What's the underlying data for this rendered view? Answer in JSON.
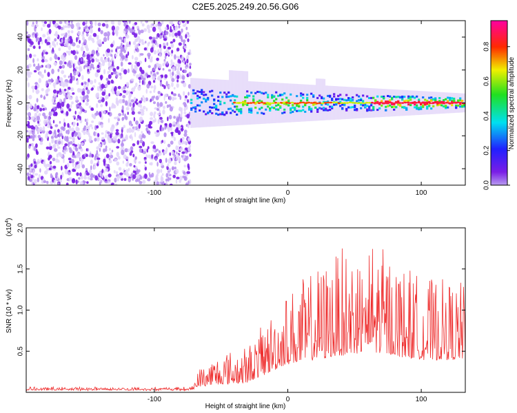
{
  "title": "C2E5.2025.249.20.56.G06",
  "colors": {
    "snr_line": "#ee2a2a",
    "background_speckle": "#8a2be2",
    "axis": "#000000"
  },
  "chart_data": [
    {
      "type": "heatmap",
      "name": "spectrogram",
      "xlabel": "Height of straight line (km)",
      "ylabel": "Frequency (Hz)",
      "xlim": [
        -196,
        133
      ],
      "ylim": [
        -50,
        50
      ],
      "x_ticks": [
        -100,
        0,
        100
      ],
      "y_ticks": [
        40,
        20,
        0,
        -20,
        -40
      ],
      "colorbar": {
        "label": "Normalized spectral amplitude",
        "range": [
          0,
          0.95
        ],
        "ticks": [
          "0.0",
          "0.2",
          "0.4",
          "0.6",
          "0.8"
        ],
        "colormap": "rainbow (purple-blue-cyan-green-yellow-red-magenta)"
      },
      "features": {
        "noise_region_x": [
          -196,
          -73
        ],
        "signal_onset_x": -73,
        "carrier_frequency_hz": 0,
        "signal_band_halfwidth_hz": [
          8,
          3
        ],
        "strong_segments_x": [
          [
            -40,
            20
          ],
          [
            62,
            120
          ]
        ],
        "peak_amplitude": 0.95
      }
    },
    {
      "type": "line",
      "name": "snr",
      "xlabel": "Height of straight line (km)",
      "ylabel": "SNR (10 * v/v)",
      "scale_label": "(x10",
      "scale_exponent": "4",
      "scale_suffix": ")",
      "xlim": [
        -196,
        133
      ],
      "ylim": [
        0,
        2.0
      ],
      "x_ticks": [
        -100,
        0,
        100
      ],
      "y_ticks": [
        "0.5",
        "1.0",
        "1.5",
        "2.0"
      ],
      "envelope": [
        {
          "x": -196,
          "baseline": 0.03,
          "amplitude": 0.03
        },
        {
          "x": -73,
          "baseline": 0.03,
          "amplitude": 0.03
        },
        {
          "x": -65,
          "baseline": 0.08,
          "amplitude": 0.25
        },
        {
          "x": -50,
          "baseline": 0.1,
          "amplitude": 0.4
        },
        {
          "x": -30,
          "baseline": 0.12,
          "amplitude": 0.45
        },
        {
          "x": -20,
          "baseline": 0.2,
          "amplitude": 0.6
        },
        {
          "x": 0,
          "baseline": 0.35,
          "amplitude": 0.9
        },
        {
          "x": 20,
          "baseline": 0.4,
          "amplitude": 1.1
        },
        {
          "x": 40,
          "baseline": 0.45,
          "amplitude": 1.3
        },
        {
          "x": 60,
          "baseline": 0.5,
          "amplitude": 1.45
        },
        {
          "x": 80,
          "baseline": 0.45,
          "amplitude": 1.2
        },
        {
          "x": 100,
          "baseline": 0.4,
          "amplitude": 1.0
        },
        {
          "x": 133,
          "baseline": 0.4,
          "amplitude": 0.95
        }
      ],
      "max_value": 2.0
    }
  ]
}
